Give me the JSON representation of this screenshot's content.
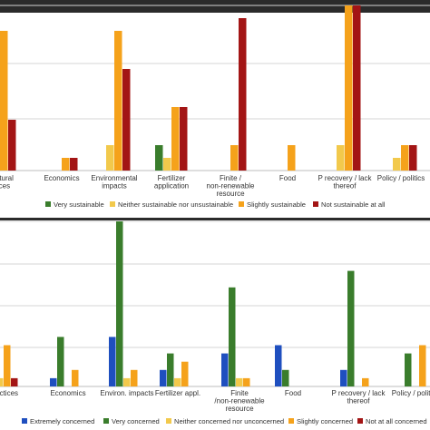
{
  "chart_data": [
    {
      "type": "bar",
      "categories": [
        [
          "…ultural",
          "…ices"
        ],
        [
          "Economics"
        ],
        [
          "Environmental",
          "impacts"
        ],
        [
          "Fertilizer",
          "application"
        ],
        [
          "Finite /",
          "non-renewable",
          "resource"
        ],
        [
          "Food"
        ],
        [
          "P recovery / lack",
          "thereof"
        ],
        [
          "Policy / politics"
        ]
      ],
      "series": [
        {
          "name": "Very sustainable",
          "color": "#3a7d2c",
          "values": [
            0,
            0,
            0,
            4,
            0,
            0,
            0,
            0
          ]
        },
        {
          "name": "Neither sustainable nor unsustainable",
          "color": "#f2c94c",
          "values": [
            0,
            0,
            4,
            2,
            0,
            0,
            4,
            2
          ]
        },
        {
          "name": "Slightly sustainable",
          "color": "#f5a21b",
          "values": [
            22,
            2,
            22,
            10,
            4,
            4,
            26,
            4
          ]
        },
        {
          "name": "Not sustainable at all",
          "color": "#a31515",
          "values": [
            8,
            2,
            16,
            10,
            24,
            0,
            26,
            4
          ]
        }
      ],
      "ylim": [
        0,
        26
      ],
      "grid": true,
      "legend": "bottom"
    },
    {
      "type": "bar",
      "categories": [
        [
          "…eractices"
        ],
        [
          "Economics"
        ],
        [
          "Environ. impacts"
        ],
        [
          "Fertilizer appl."
        ],
        [
          "Finite",
          "/non-renewable",
          "resource"
        ],
        [
          "Food"
        ],
        [
          "P recovery / lack",
          "thereof"
        ],
        [
          "Policy / politi…"
        ]
      ],
      "series": [
        {
          "name": "Extremely concerned",
          "color": "#1f4fbf",
          "values": [
            0,
            2,
            12,
            4,
            8,
            10,
            4,
            0
          ]
        },
        {
          "name": "Very concerned",
          "color": "#3a7d2c",
          "values": [
            22,
            12,
            40,
            8,
            24,
            4,
            28,
            8
          ]
        },
        {
          "name": "Neither concerned nor unconcerned",
          "color": "#f2c94c",
          "values": [
            2,
            0,
            2,
            2,
            2,
            0,
            0,
            0
          ]
        },
        {
          "name": "Slightly concerned",
          "color": "#f5a21b",
          "values": [
            10,
            4,
            4,
            6,
            2,
            0,
            2,
            10
          ]
        },
        {
          "name": "Not at all concerned",
          "color": "#a31515",
          "values": [
            2,
            0,
            0,
            0,
            0,
            0,
            0,
            0
          ]
        }
      ],
      "ylim": [
        0,
        40
      ],
      "grid": true,
      "legend": "bottom"
    }
  ]
}
